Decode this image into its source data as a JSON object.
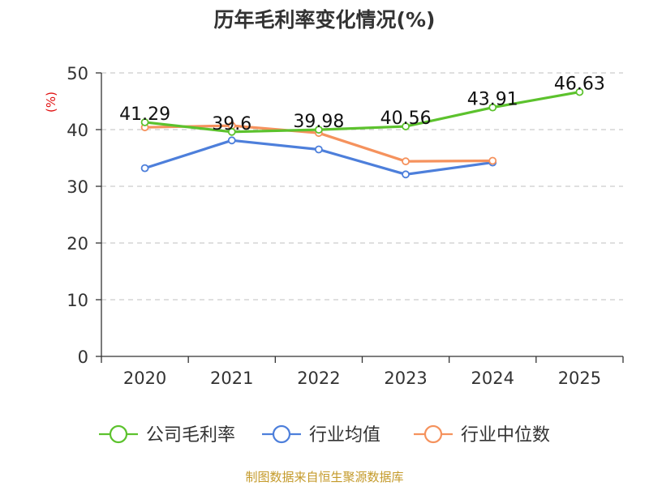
{
  "chart_data": {
    "type": "line",
    "title": "历年毛利率变化情况(%)",
    "ylabel": "(%)",
    "xlabel": "",
    "categories": [
      "2020",
      "2021",
      "2022",
      "2023",
      "2024",
      "2025"
    ],
    "ylim": [
      0,
      50
    ],
    "yticks": [
      0,
      10,
      20,
      30,
      40,
      50
    ],
    "grid": true,
    "legend_position": "bottom",
    "series": [
      {
        "name": "公司毛利率",
        "color": "#5cc22d",
        "values": [
          41.29,
          39.6,
          39.98,
          40.56,
          43.91,
          46.63
        ],
        "labels": [
          "41.29",
          "39.6",
          "39.98",
          "40.56",
          "43.91",
          "46.63"
        ]
      },
      {
        "name": "行业均值",
        "color": "#4d7fdb",
        "values": [
          33.2,
          38.1,
          36.5,
          32.1,
          34.2,
          null
        ]
      },
      {
        "name": "行业中位数",
        "color": "#f5925d",
        "values": [
          40.4,
          40.7,
          39.4,
          34.4,
          34.5,
          null
        ]
      }
    ]
  },
  "footer": {
    "source": "制图数据来自恒生聚源数据库",
    "source_color": "#c49a2a"
  },
  "colors": {
    "ylabel": "#e01010",
    "grid": "#cccccc",
    "axis": "#333333"
  }
}
